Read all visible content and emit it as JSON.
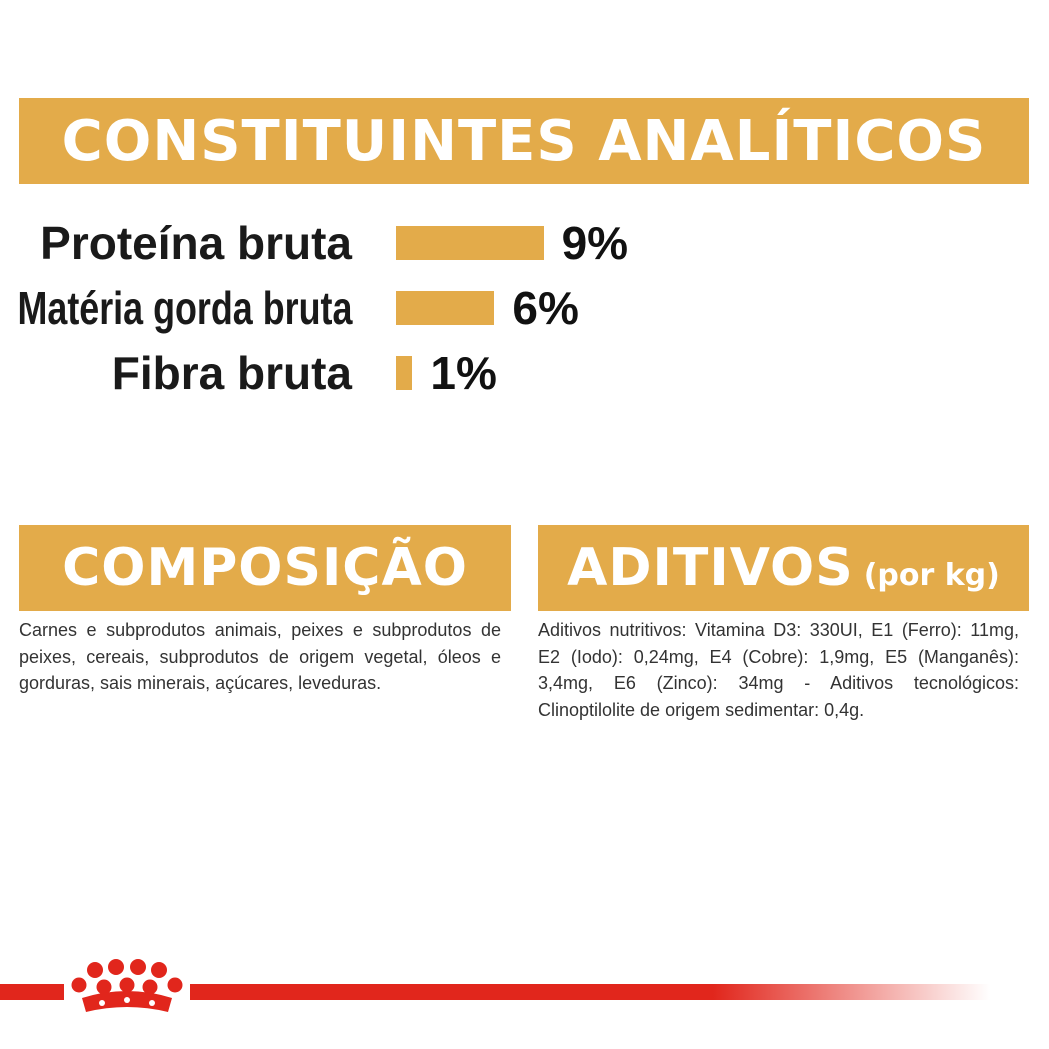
{
  "header": {
    "title": "CONSTITUINTES ANALÍTICOS"
  },
  "analytics": [
    {
      "label": "Proteína bruta",
      "value": "9%",
      "level": 9
    },
    {
      "label": "Matéria gorda bruta",
      "value": "6%",
      "level": 6
    },
    {
      "label": "Fibra bruta",
      "value": "1%",
      "level": 1
    }
  ],
  "composition": {
    "title": "COMPOSIÇÃO",
    "text": "Carnes e subprodutos animais, peixes e subprodutos de peixes, cereais, subprodutos de origem vegetal, óleos e gorduras, sais minerais, açúcares, leveduras."
  },
  "additives": {
    "title": "ADITIVOS",
    "subtitle": "(por kg)",
    "text": "Aditivos nutritivos: Vitamina D3: 330UI, E1 (Ferro): 11mg, E2 (Iodo): 0,24mg, E4 (Cobre): 1,9mg, E5 (Manganês): 3,4mg, E6 (Zinco): 34mg - Aditivos tecnológicos: Clinoptilolite de origem sedimentar: 0,4g."
  },
  "brand": {
    "logo_icon": "crown-logo-icon",
    "accent": "#e3ab4a",
    "brand_red": "#e1261c"
  }
}
